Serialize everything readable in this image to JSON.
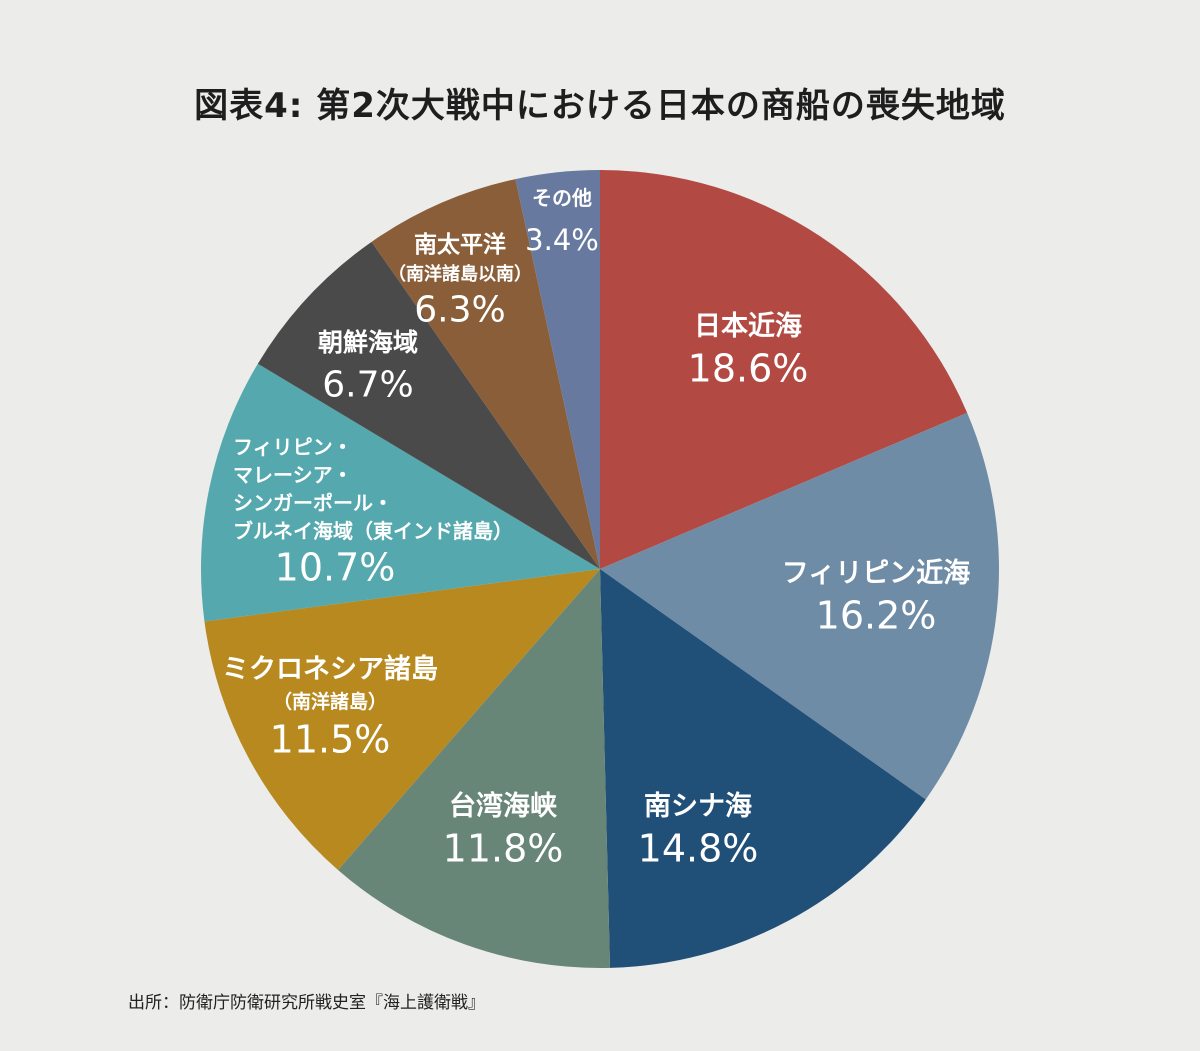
{
  "chart_data": {
    "type": "pie",
    "title": "図表4: 第2次大戦中における日本の商船の喪失地域",
    "source": "出所：防衛庁防衛研究所戦史室『海上護衛戦』",
    "slices": [
      {
        "label": [
          "日本近海"
        ],
        "value": 18.6,
        "display": "18.6%",
        "color": "#b24a43"
      },
      {
        "label": [
          "フィリピン近海"
        ],
        "value": 16.2,
        "display": "16.2%",
        "color": "#6f8ca6"
      },
      {
        "label": [
          "南シナ海"
        ],
        "value": 14.8,
        "display": "14.8%",
        "color": "#204f78"
      },
      {
        "label": [
          "台湾海峡"
        ],
        "value": 11.8,
        "display": "11.8%",
        "color": "#688677"
      },
      {
        "label": [
          "ミクロネシア諸島",
          "（南洋諸島）"
        ],
        "value": 11.5,
        "display": "11.5%",
        "color": "#b7891f"
      },
      {
        "label": [
          "フィリピン・",
          "マレーシア・",
          "シンガーポール・",
          "ブルネイ海域（東インド諸島）"
        ],
        "value": 10.7,
        "display": "10.7%",
        "color": "#55a8ad"
      },
      {
        "label": [
          "朝鮮海域"
        ],
        "value": 6.7,
        "display": "6.7%",
        "color": "#4a4a4b"
      },
      {
        "label": [
          "南太平洋",
          "（南洋諸島以南）"
        ],
        "value": 6.3,
        "display": "6.3%",
        "color": "#8a5e39"
      },
      {
        "label": [
          "その他"
        ],
        "value": 3.4,
        "display": "3.4%",
        "color": "#6879a0"
      }
    ]
  }
}
